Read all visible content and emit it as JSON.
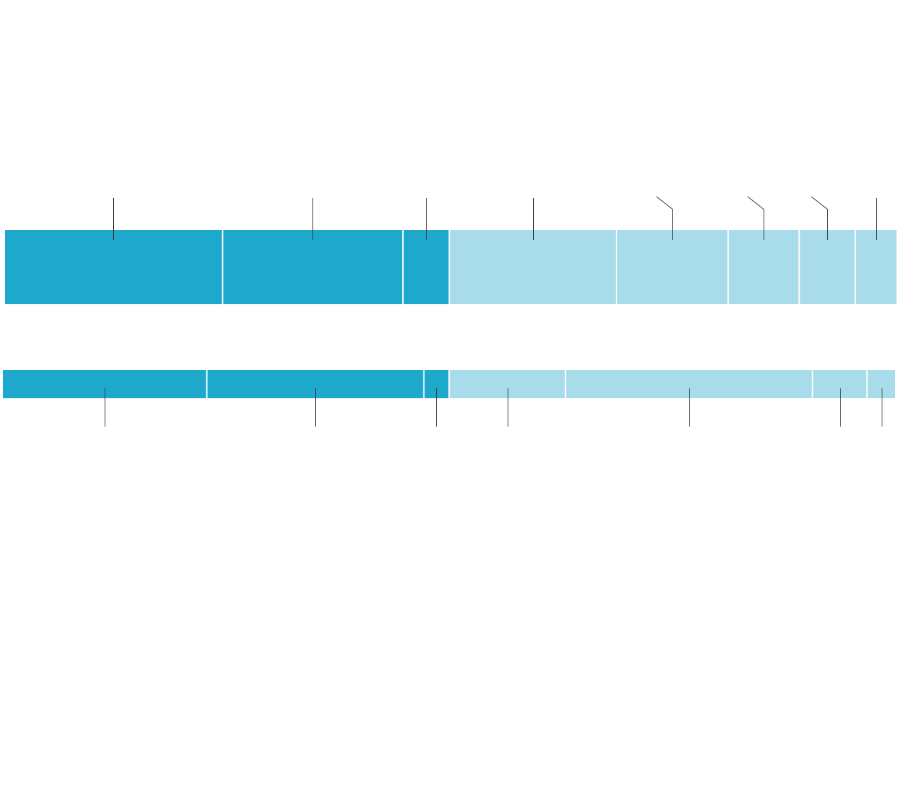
{
  "chart_data": {
    "type": "bar",
    "orientation": "horizontal",
    "stacked": true,
    "normalized": true,
    "title": "",
    "xlabel": "",
    "ylabel": "",
    "grid": false,
    "legend": "none",
    "bars": [
      {
        "segments": [
          {
            "share": 24.6,
            "shade": "dark"
          },
          {
            "share": 20.3,
            "shade": "dark"
          },
          {
            "share": 5.1,
            "shade": "dark"
          },
          {
            "share": 18.8,
            "shade": "light"
          },
          {
            "share": 12.5,
            "shade": "light"
          },
          {
            "share": 7.9,
            "shade": "light"
          },
          {
            "share": 6.2,
            "shade": "light"
          },
          {
            "share": 4.6,
            "shade": "light"
          }
        ]
      },
      {
        "segments": [
          {
            "share": 23.0,
            "shade": "dark"
          },
          {
            "share": 24.4,
            "shade": "dark"
          },
          {
            "share": 2.7,
            "shade": "dark"
          },
          {
            "share": 13.0,
            "shade": "light"
          },
          {
            "share": 27.8,
            "shade": "light"
          },
          {
            "share": 6.0,
            "shade": "light"
          },
          {
            "share": 3.1,
            "shade": "light"
          }
        ]
      }
    ],
    "colors": {
      "dark": "#1ea8cb",
      "light": "#a8dcea",
      "leader": "#333333",
      "divider": "#ffffff"
    }
  }
}
